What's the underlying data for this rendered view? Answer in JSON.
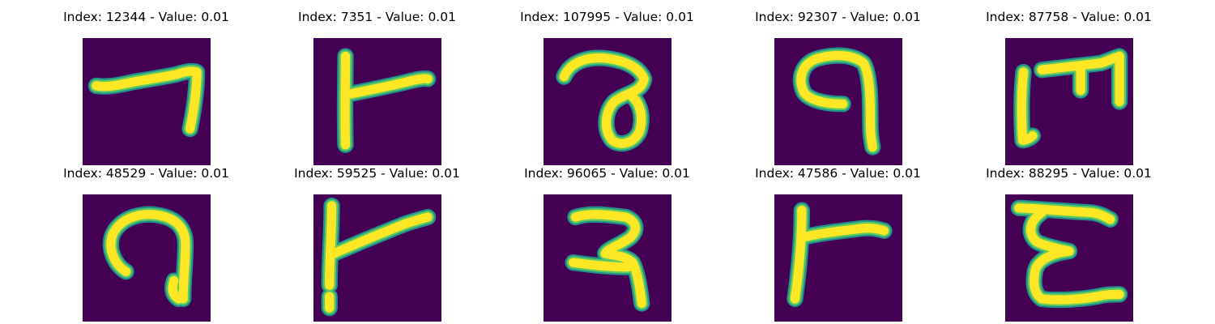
{
  "colors": {
    "background": "#440154",
    "stroke_core": "#fde725",
    "stroke_edge": "#21918c",
    "stroke_mid": "#5ec962"
  },
  "panels": [
    {
      "title": "Index: 12344 - Value: 0.01",
      "glyph": "glyph-1"
    },
    {
      "title": "Index: 7351 - Value: 0.01",
      "glyph": "glyph-2"
    },
    {
      "title": "Index: 107995 - Value: 0.01",
      "glyph": "glyph-3"
    },
    {
      "title": "Index: 92307 - Value: 0.01",
      "glyph": "glyph-4"
    },
    {
      "title": "Index: 87758 - Value: 0.01",
      "glyph": "glyph-5"
    },
    {
      "title": "Index: 48529 - Value: 0.01",
      "glyph": "glyph-6"
    },
    {
      "title": "Index: 59525 - Value: 0.01",
      "glyph": "glyph-7"
    },
    {
      "title": "Index: 96065 - Value: 0.01",
      "glyph": "glyph-8"
    },
    {
      "title": "Index: 47586 - Value: 0.01",
      "glyph": "glyph-9"
    },
    {
      "title": "Index: 88295 - Value: 0.01",
      "glyph": "glyph-10"
    }
  ]
}
